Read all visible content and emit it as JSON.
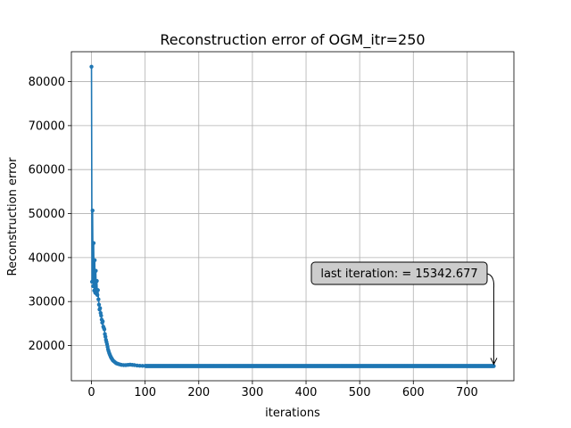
{
  "chart_data": {
    "type": "line",
    "title": "Reconstruction error of OGM_itr=250",
    "xlabel": "iterations",
    "ylabel": "Reconstruction error",
    "xlim": [
      -37.5,
      787.5
    ],
    "ylim": [
      12000,
      86800
    ],
    "xticks": [
      0,
      100,
      200,
      300,
      400,
      500,
      600,
      700
    ],
    "yticks": [
      20000,
      30000,
      40000,
      50000,
      60000,
      70000,
      80000
    ],
    "grid": true,
    "marker": "circle",
    "series_color": "#1f77b4",
    "early_points": [
      [
        0,
        83400
      ],
      [
        1,
        34500
      ],
      [
        2,
        50700
      ],
      [
        3,
        33500
      ],
      [
        4,
        43300
      ],
      [
        5,
        32500
      ],
      [
        6,
        39400
      ],
      [
        7,
        32000
      ],
      [
        8,
        37000
      ],
      [
        9,
        31800
      ],
      [
        10,
        34700
      ],
      [
        11,
        31500
      ],
      [
        12,
        32600
      ],
      [
        13,
        30500
      ],
      [
        14,
        29300
      ],
      [
        15,
        28200
      ],
      [
        16,
        28500
      ],
      [
        17,
        27400
      ],
      [
        18,
        26800
      ],
      [
        19,
        25900
      ],
      [
        20,
        25200
      ],
      [
        21,
        25500
      ],
      [
        22,
        24300
      ],
      [
        23,
        24000
      ],
      [
        24,
        23700
      ],
      [
        25,
        22600
      ],
      [
        26,
        22000
      ],
      [
        27,
        21300
      ],
      [
        28,
        20800
      ],
      [
        29,
        20300
      ],
      [
        30,
        19700
      ],
      [
        31,
        19100
      ],
      [
        32,
        18700
      ],
      [
        33,
        18300
      ],
      [
        34,
        18000
      ],
      [
        35,
        17700
      ],
      [
        36,
        17400
      ],
      [
        37,
        17200
      ],
      [
        38,
        17000
      ],
      [
        39,
        16800
      ],
      [
        40,
        16600
      ],
      [
        42,
        16400
      ],
      [
        44,
        16200
      ],
      [
        46,
        16000
      ],
      [
        48,
        15900
      ],
      [
        50,
        15800
      ],
      [
        53,
        15700
      ],
      [
        56,
        15600
      ],
      [
        60,
        15550
      ],
      [
        64,
        15550
      ],
      [
        68,
        15600
      ],
      [
        72,
        15650
      ],
      [
        76,
        15600
      ],
      [
        80,
        15550
      ],
      [
        85,
        15450
      ],
      [
        90,
        15400
      ],
      [
        95,
        15380
      ],
      [
        100,
        15370
      ]
    ],
    "plateau": {
      "from": 100,
      "to": 750,
      "value": 15342.677
    },
    "annotation": {
      "text": "last iteration: = 15342.677",
      "point": [
        750,
        15342.677
      ]
    }
  }
}
